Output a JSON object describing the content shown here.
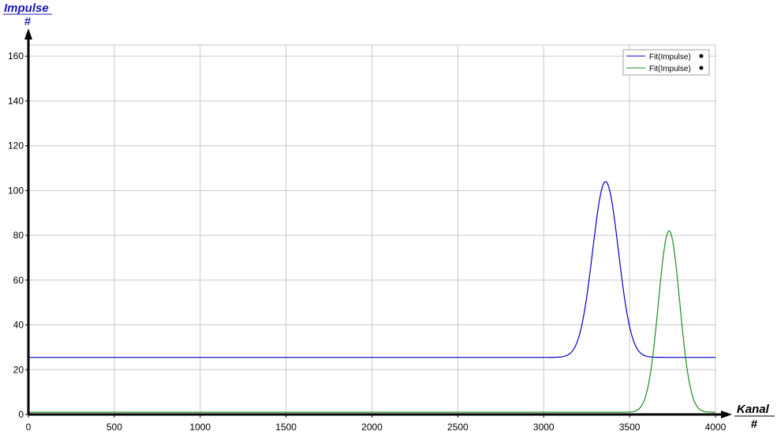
{
  "chart_data": {
    "type": "line",
    "xlabel": "Kanal",
    "xunit": "#",
    "ylabel": "Impulse",
    "yunit": "#",
    "xlim": [
      0,
      4000
    ],
    "ylim": [
      0,
      165
    ],
    "xticks": [
      0,
      500,
      1000,
      1500,
      2000,
      2500,
      3000,
      3500,
      4000
    ],
    "yticks": [
      0,
      20,
      40,
      60,
      80,
      100,
      120,
      140,
      160
    ],
    "grid": true,
    "legend_position": "top-right",
    "series": [
      {
        "name": "Fit(Impulse)",
        "color": "#0000c8",
        "model": "gaussian",
        "baseline": 25.5,
        "peak_x": 3360,
        "peak_y": 104,
        "sigma": 75
      },
      {
        "name": "Fit(Impulse)",
        "color": "#1e8c1e",
        "model": "gaussian",
        "baseline": 1,
        "peak_x": 3730,
        "peak_y": 82,
        "sigma": 62
      }
    ]
  },
  "colors": {
    "grid": "#c8c8c8",
    "axis": "#000000",
    "title_accent": "#1b1bb4"
  }
}
